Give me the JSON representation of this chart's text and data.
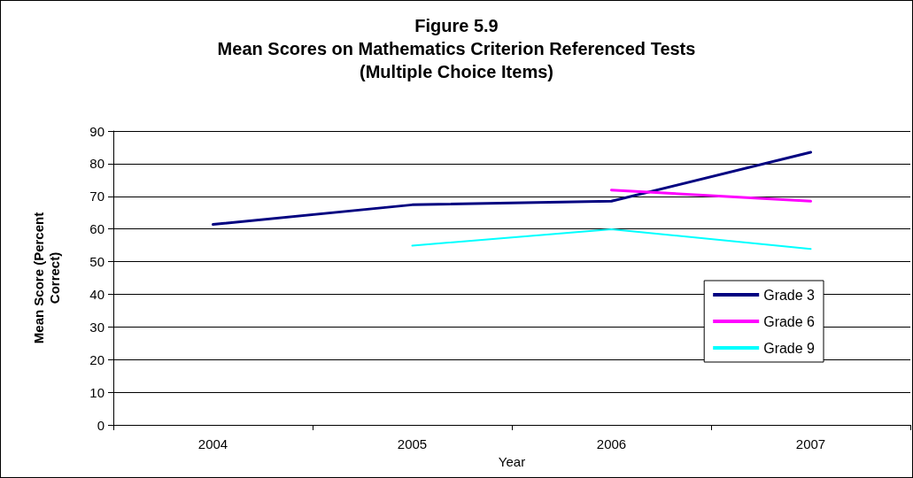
{
  "chart_data": {
    "type": "line",
    "title": "Figure 5.9\nMean Scores on Mathematics Criterion Referenced Tests\n(Multiple Choice Items)",
    "xlabel": "Year",
    "ylabel": "Mean Score (Percent\nCorrect)",
    "categories": [
      "2004",
      "2005",
      "2006",
      "2007"
    ],
    "series": [
      {
        "name": "Grade 3",
        "color": "#000080",
        "values": [
          61.4,
          67.4,
          68.5,
          83.5
        ]
      },
      {
        "name": "Grade 6",
        "color": "#ff00ff",
        "values": [
          null,
          null,
          71.9,
          68.5
        ]
      },
      {
        "name": "Grade 9",
        "color": "#00ffff",
        "values": [
          null,
          54.9,
          59.9,
          53.9
        ]
      }
    ],
    "ylim": [
      0,
      90
    ],
    "yticks": [
      0,
      10,
      20,
      30,
      40,
      50,
      60,
      70,
      80,
      90
    ],
    "grid": "y",
    "legend": "bottom right",
    "marker": "none",
    "line_style": "solid"
  }
}
